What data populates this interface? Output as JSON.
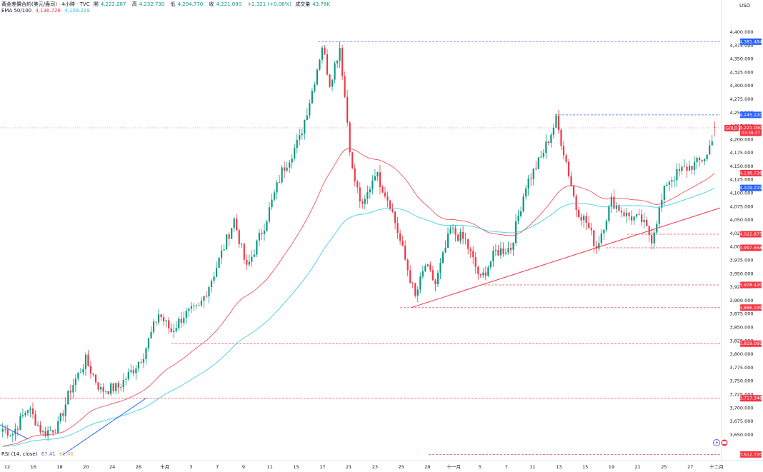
{
  "header": {
    "symbol_line": "黃金差價合約(美元/盎司) · 4小時 · TVC",
    "open_label": "開",
    "open": "4,222.287",
    "high_label": "高",
    "high": "4,232.730",
    "low_label": "低",
    "low": "4,204.770",
    "close_label": "收",
    "close": "4,221.090",
    "change": "+2.321 (+0.06%)",
    "volume_label": "成交量",
    "volume": "43.76K",
    "ema_label": "EMA 50/100",
    "ema50": "4,136.726",
    "ema100": "4,109.219",
    "currency": "USD"
  },
  "rsi": {
    "label": "RSI (14, close)",
    "v1": "67.41",
    "v2": "61.46"
  },
  "colors": {
    "up": "#089981",
    "down": "#f23645",
    "ema50": "#f23645",
    "ema100": "#22c7e0",
    "level": "#f23645",
    "blue_level": "#2962ff",
    "trend_red": "#f23645",
    "trend_blue": "#2962ff"
  },
  "chart_data": {
    "type": "candlestick",
    "ylim": [
      3612,
      4410
    ],
    "y_ticks": [
      "4,400.000",
      "4,375.000",
      "4,350.000",
      "4,325.000",
      "4,300.000",
      "4,275.000",
      "4,250.000",
      "4,225.000",
      "4,200.000",
      "4,175.000",
      "4,150.000",
      "4,125.000",
      "4,100.000",
      "4,075.000",
      "4,050.000",
      "4,025.000",
      "4,000.000",
      "3,975.000",
      "3,950.000",
      "3,925.000",
      "3,900.000",
      "3,875.000",
      "3,850.000",
      "3,825.000",
      "3,800.000",
      "3,775.000",
      "3,750.000",
      "3,725.000",
      "3,700.000",
      "3,675.000",
      "3,650.000"
    ],
    "x_ticks": [
      "12",
      "16",
      "18",
      "20",
      "24",
      "26",
      "十月",
      "3",
      "7",
      "9",
      "11",
      "15",
      "17",
      "21",
      "23",
      "25",
      "29",
      "十一月",
      "5",
      "7",
      "11",
      "13",
      "15",
      "19",
      "21",
      "25",
      "27",
      "十二月"
    ],
    "anchors": [
      [
        0,
        3660
      ],
      [
        4,
        3652
      ],
      [
        10,
        3700
      ],
      [
        16,
        3652
      ],
      [
        22,
        3665
      ],
      [
        27,
        3735
      ],
      [
        33,
        3788
      ],
      [
        39,
        3732
      ],
      [
        46,
        3738
      ],
      [
        52,
        3772
      ],
      [
        56,
        3800
      ],
      [
        62,
        3875
      ],
      [
        67,
        3842
      ],
      [
        72,
        3872
      ],
      [
        78,
        3885
      ],
      [
        84,
        3950
      ],
      [
        92,
        4050
      ],
      [
        97,
        3958
      ],
      [
        104,
        4040
      ],
      [
        111,
        4140
      ],
      [
        118,
        4200
      ],
      [
        123,
        4290
      ],
      [
        127,
        4375
      ],
      [
        130,
        4305
      ],
      [
        134,
        4372
      ],
      [
        139,
        4140
      ],
      [
        143,
        4070
      ],
      [
        148,
        4140
      ],
      [
        154,
        4080
      ],
      [
        160,
        3975
      ],
      [
        164,
        3905
      ],
      [
        168,
        3965
      ],
      [
        172,
        3930
      ],
      [
        178,
        4030
      ],
      [
        184,
        4010
      ],
      [
        190,
        3938
      ],
      [
        196,
        3990
      ],
      [
        202,
        3998
      ],
      [
        208,
        4115
      ],
      [
        214,
        4165
      ],
      [
        220,
        4235
      ],
      [
        224,
        4158
      ],
      [
        228,
        4072
      ],
      [
        232,
        4045
      ],
      [
        236,
        3998
      ],
      [
        242,
        4085
      ],
      [
        248,
        4058
      ],
      [
        254,
        4048
      ],
      [
        258,
        4015
      ],
      [
        264,
        4120
      ],
      [
        270,
        4142
      ],
      [
        276,
        4155
      ],
      [
        280,
        4170
      ],
      [
        283,
        4221.09
      ]
    ],
    "last_candle": {
      "open": 4222.287,
      "high": 4232.73,
      "low": 4204.77,
      "close": 4221.09
    },
    "price_levels": [
      {
        "price": 4381.484,
        "label": "4,381.484",
        "style": "blue"
      },
      {
        "price": 4245.22,
        "label": "4,245.220",
        "style": "blue"
      },
      {
        "price": 4221.09,
        "label": "4,221.090",
        "style": "current",
        "symbol": "GOLD",
        "countdown": "03:36:27"
      },
      {
        "price": 4136.726,
        "label": "4,136.726",
        "style": "ema50"
      },
      {
        "price": 4109.219,
        "label": "4,109.219",
        "style": "ema100"
      },
      {
        "price": 4022.875,
        "label": "4,022.875",
        "style": "red"
      },
      {
        "price": 3997.658,
        "label": "3,997.658",
        "style": "red"
      },
      {
        "price": 3928.42,
        "label": "3,928.420",
        "style": "red"
      },
      {
        "price": 3886.199,
        "label": "3,886.199",
        "style": "red"
      },
      {
        "price": 3819.095,
        "label": "3,819.095",
        "style": "red"
      },
      {
        "price": 3717.348,
        "label": "3,717.348",
        "style": "red"
      },
      {
        "price": 3612.72,
        "label": "3,612.720",
        "style": "red"
      }
    ]
  }
}
